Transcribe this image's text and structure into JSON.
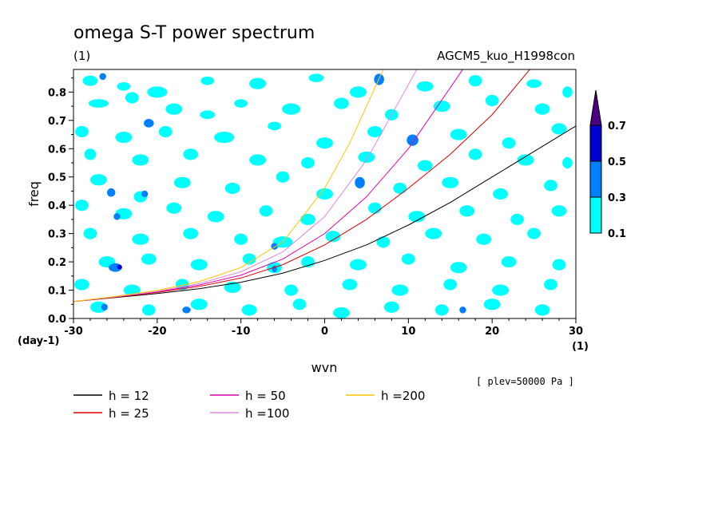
{
  "title": "omega S-T power spectrum",
  "subtitle_unit": "(1)",
  "model_label": "AGCM5_kuo_H1998con",
  "level_note": "[ plev=50000 Pa ]",
  "x_unit_label": "(1)",
  "y_unit_label": "(day-1)",
  "chart_data": {
    "type": "heatmap",
    "title": "omega S-T power spectrum",
    "xlabel": "wvn",
    "ylabel": "freq",
    "xlim": [
      -30,
      30
    ],
    "ylim": [
      0,
      0.88
    ],
    "x_ticks": [
      -30,
      -20,
      -10,
      0,
      10,
      20,
      30
    ],
    "y_ticks": [
      0.0,
      0.1,
      0.2,
      0.3,
      0.4,
      0.5,
      0.6,
      0.7,
      0.8
    ],
    "x_tick_labels": [
      "-30",
      "-20",
      "-10",
      "0",
      "10",
      "20",
      "30"
    ],
    "y_tick_labels": [
      "0.0",
      "0.1",
      "0.2",
      "0.3",
      "0.4",
      "0.5",
      "0.6",
      "0.7",
      "0.8"
    ],
    "contour_levels": [
      0.1,
      0.3,
      0.5,
      0.7
    ],
    "colorbar_labels": [
      "0.1",
      "0.3",
      "0.5",
      "0.7"
    ],
    "fill_colors": [
      "#00ffff",
      "#0080ff",
      "#0000cd",
      "#4b0082"
    ],
    "patches": [
      [
        -28,
        0.84,
        0.9,
        0.018,
        1
      ],
      [
        -26.5,
        0.855,
        0.4,
        0.012,
        2
      ],
      [
        -24,
        0.82,
        0.8,
        0.015,
        1
      ],
      [
        -20,
        0.8,
        1.2,
        0.02,
        1
      ],
      [
        -14,
        0.84,
        0.8,
        0.015,
        1
      ],
      [
        -8,
        0.83,
        1.0,
        0.02,
        1
      ],
      [
        -1,
        0.85,
        0.9,
        0.015,
        1
      ],
      [
        4,
        0.8,
        1.0,
        0.02,
        1
      ],
      [
        6.5,
        0.845,
        0.6,
        0.02,
        2
      ],
      [
        12,
        0.82,
        1.0,
        0.018,
        1
      ],
      [
        18,
        0.84,
        0.8,
        0.02,
        1
      ],
      [
        25,
        0.83,
        0.9,
        0.015,
        1
      ],
      [
        29,
        0.8,
        0.6,
        0.02,
        1
      ],
      [
        -27,
        0.76,
        1.2,
        0.015,
        1
      ],
      [
        -23,
        0.78,
        0.8,
        0.02,
        1
      ],
      [
        -18,
        0.74,
        1.0,
        0.02,
        1
      ],
      [
        -14,
        0.72,
        0.9,
        0.015,
        1
      ],
      [
        -10,
        0.76,
        0.8,
        0.015,
        1
      ],
      [
        -4,
        0.74,
        1.1,
        0.02,
        1
      ],
      [
        2,
        0.76,
        0.9,
        0.02,
        1
      ],
      [
        8,
        0.72,
        0.8,
        0.02,
        1
      ],
      [
        14,
        0.75,
        1.0,
        0.02,
        1
      ],
      [
        20,
        0.77,
        0.8,
        0.02,
        1
      ],
      [
        26,
        0.74,
        0.9,
        0.02,
        1
      ],
      [
        -21,
        0.69,
        0.6,
        0.015,
        2
      ],
      [
        -29,
        0.66,
        0.8,
        0.02,
        1
      ],
      [
        -24,
        0.64,
        1.0,
        0.02,
        1
      ],
      [
        -19,
        0.66,
        0.8,
        0.02,
        1
      ],
      [
        -12,
        0.64,
        1.2,
        0.02,
        1
      ],
      [
        -6,
        0.68,
        0.8,
        0.015,
        1
      ],
      [
        0,
        0.62,
        1.0,
        0.02,
        1
      ],
      [
        6,
        0.66,
        0.9,
        0.02,
        1
      ],
      [
        10.5,
        0.63,
        0.7,
        0.02,
        2
      ],
      [
        16,
        0.65,
        1.0,
        0.02,
        1
      ],
      [
        22,
        0.62,
        0.8,
        0.02,
        1
      ],
      [
        28,
        0.67,
        0.9,
        0.02,
        1
      ],
      [
        -28,
        0.58,
        0.7,
        0.02,
        1
      ],
      [
        -22,
        0.56,
        1.0,
        0.02,
        1
      ],
      [
        -16,
        0.58,
        0.9,
        0.02,
        1
      ],
      [
        -8,
        0.56,
        1.0,
        0.02,
        1
      ],
      [
        -2,
        0.55,
        0.8,
        0.02,
        1
      ],
      [
        5,
        0.57,
        1.0,
        0.02,
        1
      ],
      [
        12,
        0.54,
        0.9,
        0.02,
        1
      ],
      [
        18,
        0.58,
        0.8,
        0.02,
        1
      ],
      [
        24,
        0.56,
        1.0,
        0.02,
        1
      ],
      [
        29,
        0.55,
        0.6,
        0.02,
        1
      ],
      [
        -27,
        0.49,
        1.0,
        0.02,
        1
      ],
      [
        -25.5,
        0.445,
        0.5,
        0.015,
        2
      ],
      [
        -22,
        0.43,
        0.8,
        0.02,
        1
      ],
      [
        -21.5,
        0.44,
        0.4,
        0.012,
        2
      ],
      [
        -17,
        0.48,
        1.0,
        0.02,
        1
      ],
      [
        -11,
        0.46,
        0.9,
        0.02,
        1
      ],
      [
        -5,
        0.5,
        0.8,
        0.02,
        1
      ],
      [
        0,
        0.44,
        1.0,
        0.02,
        1
      ],
      [
        4.2,
        0.48,
        0.6,
        0.02,
        2
      ],
      [
        9,
        0.46,
        0.8,
        0.02,
        1
      ],
      [
        15,
        0.48,
        1.0,
        0.02,
        1
      ],
      [
        21,
        0.44,
        0.9,
        0.02,
        1
      ],
      [
        27,
        0.47,
        0.8,
        0.02,
        1
      ],
      [
        -29,
        0.4,
        0.8,
        0.02,
        1
      ],
      [
        -24,
        0.37,
        1.0,
        0.02,
        1
      ],
      [
        -24.8,
        0.36,
        0.4,
        0.012,
        2
      ],
      [
        -18,
        0.39,
        0.9,
        0.02,
        1
      ],
      [
        -13,
        0.36,
        1.0,
        0.02,
        1
      ],
      [
        -7,
        0.38,
        0.8,
        0.02,
        1
      ],
      [
        -2,
        0.35,
        0.9,
        0.02,
        1
      ],
      [
        6,
        0.39,
        0.8,
        0.02,
        1
      ],
      [
        11,
        0.36,
        1.0,
        0.02,
        1
      ],
      [
        17,
        0.38,
        0.9,
        0.02,
        1
      ],
      [
        23,
        0.35,
        0.8,
        0.02,
        1
      ],
      [
        28,
        0.38,
        0.9,
        0.02,
        1
      ],
      [
        -28,
        0.3,
        0.8,
        0.02,
        1
      ],
      [
        -22,
        0.28,
        1.0,
        0.02,
        1
      ],
      [
        -16,
        0.3,
        0.9,
        0.02,
        1
      ],
      [
        -10,
        0.28,
        0.8,
        0.02,
        1
      ],
      [
        -5,
        0.27,
        1.2,
        0.02,
        1
      ],
      [
        -6,
        0.255,
        0.4,
        0.012,
        2
      ],
      [
        1,
        0.29,
        0.9,
        0.02,
        1
      ],
      [
        7,
        0.27,
        0.8,
        0.02,
        1
      ],
      [
        13,
        0.3,
        1.0,
        0.02,
        1
      ],
      [
        19,
        0.28,
        0.9,
        0.02,
        1
      ],
      [
        25,
        0.3,
        0.8,
        0.02,
        1
      ],
      [
        -26,
        0.2,
        1.0,
        0.02,
        1
      ],
      [
        -25,
        0.18,
        0.8,
        0.015,
        2
      ],
      [
        -24.5,
        0.182,
        0.3,
        0.008,
        3
      ],
      [
        -21,
        0.21,
        0.9,
        0.02,
        1
      ],
      [
        -15,
        0.19,
        1.0,
        0.02,
        1
      ],
      [
        -9,
        0.21,
        0.8,
        0.02,
        1
      ],
      [
        -6,
        0.18,
        0.9,
        0.02,
        1
      ],
      [
        -6,
        0.175,
        0.3,
        0.012,
        2
      ],
      [
        -2,
        0.2,
        0.8,
        0.02,
        1
      ],
      [
        4,
        0.19,
        1.0,
        0.02,
        1
      ],
      [
        10,
        0.21,
        0.8,
        0.02,
        1
      ],
      [
        16,
        0.18,
        1.0,
        0.02,
        1
      ],
      [
        22,
        0.2,
        0.9,
        0.02,
        1
      ],
      [
        28,
        0.19,
        0.8,
        0.02,
        1
      ],
      [
        -29,
        0.12,
        0.9,
        0.02,
        1
      ],
      [
        -23,
        0.1,
        1.0,
        0.02,
        1
      ],
      [
        -17,
        0.12,
        0.8,
        0.02,
        1
      ],
      [
        -11,
        0.11,
        1.0,
        0.02,
        1
      ],
      [
        -4,
        0.1,
        0.8,
        0.02,
        1
      ],
      [
        3,
        0.12,
        0.9,
        0.02,
        1
      ],
      [
        9,
        0.1,
        1.0,
        0.02,
        1
      ],
      [
        15,
        0.12,
        0.8,
        0.02,
        1
      ],
      [
        21,
        0.1,
        1.0,
        0.02,
        1
      ],
      [
        27,
        0.12,
        0.8,
        0.02,
        1
      ],
      [
        -27,
        0.04,
        1.0,
        0.02,
        1
      ],
      [
        -26.3,
        0.04,
        0.4,
        0.012,
        2
      ],
      [
        -21,
        0.03,
        0.8,
        0.02,
        1
      ],
      [
        -15,
        0.05,
        1.0,
        0.02,
        1
      ],
      [
        -9,
        0.03,
        0.9,
        0.02,
        1
      ],
      [
        -3,
        0.05,
        0.8,
        0.02,
        1
      ],
      [
        2,
        0.02,
        1.0,
        0.02,
        1
      ],
      [
        8,
        0.04,
        0.9,
        0.02,
        1
      ],
      [
        14,
        0.03,
        0.8,
        0.02,
        1
      ],
      [
        20,
        0.05,
        1.0,
        0.02,
        1
      ],
      [
        26,
        0.03,
        0.9,
        0.02,
        1
      ],
      [
        16.5,
        0.03,
        0.4,
        0.012,
        2
      ],
      [
        -16.5,
        0.03,
        0.5,
        0.012,
        2
      ]
    ],
    "series": [
      {
        "name": "h = 12",
        "color": "#000000",
        "x": [
          -30,
          -25,
          -20,
          -15,
          -10,
          -5,
          0,
          5,
          10,
          15,
          20,
          25,
          30
        ],
        "y": [
          0.06,
          0.074,
          0.088,
          0.105,
          0.128,
          0.16,
          0.205,
          0.26,
          0.33,
          0.41,
          0.5,
          0.59,
          0.68
        ]
      },
      {
        "name": "h = 25",
        "color": "#dd0000",
        "x": [
          -30,
          -25,
          -20,
          -15,
          -10,
          -5,
          0,
          5,
          10,
          15,
          20,
          24.5
        ],
        "y": [
          0.06,
          0.075,
          0.092,
          0.113,
          0.143,
          0.19,
          0.26,
          0.35,
          0.46,
          0.58,
          0.72,
          0.88
        ]
      },
      {
        "name": "h = 50",
        "color": "#e000b0",
        "x": [
          -30,
          -25,
          -20,
          -15,
          -10,
          -5,
          0,
          5,
          10,
          16.5
        ],
        "y": [
          0.06,
          0.076,
          0.094,
          0.118,
          0.153,
          0.21,
          0.3,
          0.43,
          0.6,
          0.88
        ]
      },
      {
        "name": "h =100",
        "color": "#dd88dd",
        "x": [
          -30,
          -25,
          -20,
          -15,
          -10,
          -5,
          0,
          5,
          11
        ],
        "y": [
          0.06,
          0.077,
          0.096,
          0.123,
          0.165,
          0.235,
          0.36,
          0.56,
          0.88
        ]
      },
      {
        "name": "h =200",
        "color": "#ffc400",
        "x": [
          -30,
          -25,
          -20,
          -15,
          -10,
          -5,
          0,
          3,
          7
        ],
        "y": [
          0.06,
          0.078,
          0.099,
          0.13,
          0.18,
          0.27,
          0.46,
          0.62,
          0.88
        ]
      }
    ],
    "legend_position": "bottom"
  }
}
